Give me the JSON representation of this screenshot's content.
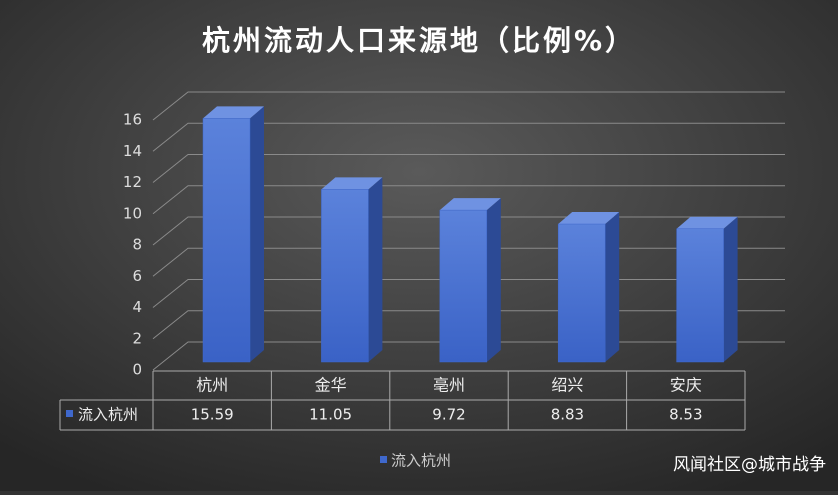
{
  "chart_data": {
    "type": "bar3d",
    "title": "杭州流动人口来源地（比例%）",
    "categories": [
      "杭州",
      "金华",
      "亳州",
      "绍兴",
      "安庆"
    ],
    "series": [
      {
        "name": "流入杭州",
        "color": "#3f68cc",
        "values": [
          15.59,
          11.05,
          9.72,
          8.83,
          8.53
        ]
      }
    ],
    "ylim": [
      0,
      16
    ],
    "yticks": [
      0,
      2,
      4,
      6,
      8,
      10,
      12,
      14,
      16
    ],
    "grid": true,
    "data_table": true,
    "legend": "bottom",
    "watermark": "风闻社区@城市战争"
  }
}
